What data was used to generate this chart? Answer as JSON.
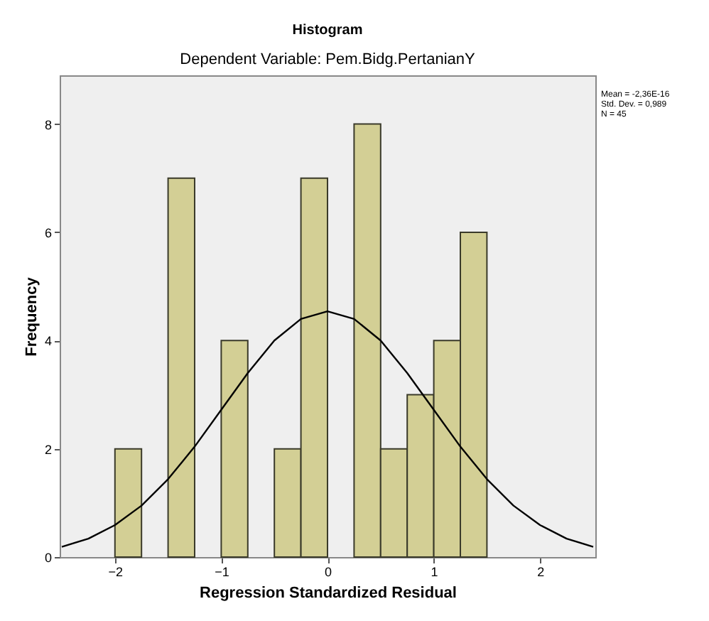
{
  "chart_data": {
    "type": "histogram",
    "title": "Histogram",
    "subtitle": "Dependent Variable: Pem.Bidg.PertanianY",
    "xlabel": "Regression Standardized Residual",
    "ylabel": "Frequency",
    "bins": [
      -2,
      -1.75,
      -1.5,
      -1.25,
      -1,
      -0.75,
      -0.5,
      -0.25,
      0,
      0.25,
      0.5,
      0.75,
      1,
      1.25,
      1.5
    ],
    "values": [
      2,
      0,
      7,
      0,
      4,
      0,
      2,
      7,
      0,
      8,
      2,
      3,
      4,
      6
    ],
    "color": "#d3cf95",
    "series": [
      {
        "type": "line",
        "color": "#000000",
        "x": [
          -2.5,
          -2.25,
          -2,
          -1.75,
          -1.5,
          -1.25,
          -1,
          -0.75,
          -0.5,
          -0.25,
          0,
          0.25,
          0.5,
          0.75,
          1,
          1.25,
          1.5,
          1.75,
          2,
          2.25,
          2.5
        ],
        "values": [
          0.19,
          0.34,
          0.59,
          0.95,
          1.44,
          2.04,
          2.72,
          3.4,
          4.0,
          4.4,
          4.54,
          4.4,
          4.0,
          3.4,
          2.72,
          2.04,
          1.44,
          0.95,
          0.59,
          0.34,
          0.19
        ]
      }
    ],
    "xlim": [
      -2.52,
      2.52
    ],
    "xticks": [
      -2,
      -1,
      0,
      1,
      2
    ],
    "ylim": [
      0,
      8.9
    ],
    "yticks": [
      0,
      2,
      4,
      6,
      8
    ],
    "grid": false,
    "annotations": [
      "Mean = -2,36E-16",
      "Std. Dev. = 0,989",
      "N = 45"
    ]
  }
}
